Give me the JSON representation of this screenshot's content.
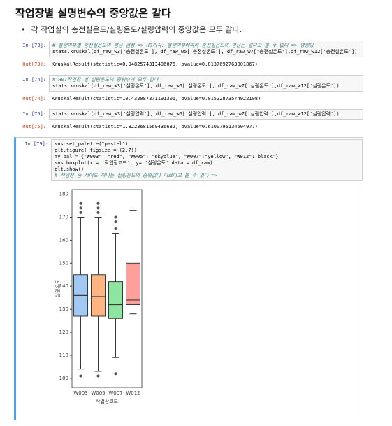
{
  "heading": "작업장별 설명변수의 중앙값은 같다",
  "bullet": "각 작업실의 충전실온도/실링온도/실링압력의 중앙값은 모두 같다.",
  "cells": [
    {
      "prompt": "In [73]:",
      "lines": [
        "# 불량여부별 충전실온도의 평균 검정 => H0기각: 불량여부에따라 충전실온도의 평균은 같다고 볼 수 없다 => 영향있",
        "stats.kruskal(df_raw_w3['충전실온도'], df_raw_w5['충전실온도'], df_raw_w7['충전실온도'],df_raw_w12['충전실온도'])"
      ],
      "out_prompt": "Out[73]:",
      "output": "KruskalResult(statistic=0.9482574313406076, pvalue=0.8137692763801867)"
    },
    {
      "prompt": "In [74]:",
      "lines": [
        "# H0:작업장 별 실링온도의 중위수가 모두 같다",
        "stats.kruskal(df_raw_w3['실링온도'], df_raw_w5['실링온도'], df_raw_w7['실링온도'],df_raw_w12['실링온도'])"
      ],
      "out_prompt": "Out[74]:",
      "output": "KruskalResult(statistic=10.432087371191301, pvalue=0.01522873574922198)"
    },
    {
      "prompt": "In [75]:",
      "lines": [
        "stats.kruskal(df_raw_w3['실링압력'], df_raw_w5['실링압력'], df_raw_w7['실링압력'],df_raw_w12['실링압력'])"
      ],
      "out_prompt": "Out[75]:",
      "output": "KruskalResult(statistic=1.8223681569436632, pvalue=0.6100795134504977)"
    },
    {
      "prompt": "In [79]:",
      "lines": [
        "sns.set_palette(\"pastel\")",
        "plt.figure( figsize = (2,7))",
        "my_pal = {\"W003\": \"red\", \"W005\": \"skyblue\", \"W007\":\"yellow\", \"W012\":'black'}",
        "sns.boxplot(x = '작업장코드', y= '실링온도',data = df_raw)",
        "plt.show()",
        "# 작업장 중 적어도 하나는 실링온도의 중위값이 다르다고 볼 수 있다 =>"
      ]
    }
  ],
  "chart_data": {
    "type": "box",
    "xlabel": "작업장코드",
    "ylabel": "실링온도",
    "categories": [
      "W003",
      "W005",
      "W007",
      "W012"
    ],
    "colors": [
      "#a1c9f4",
      "#ffb482",
      "#8de5a1",
      "#ff9f9b"
    ],
    "whislo": [
      104,
      103,
      109,
      128
    ],
    "q1": [
      127,
      127,
      126,
      132
    ],
    "median": [
      136,
      135.5,
      132,
      134
    ],
    "q3": [
      145,
      145,
      142,
      150
    ],
    "whishi": [
      170,
      170,
      163,
      173
    ],
    "outliers": [
      [
        101,
        172,
        174,
        176
      ],
      [
        101,
        172,
        174,
        176
      ],
      [
        102,
        165,
        168,
        170
      ],
      []
    ],
    "ylim": [
      96,
      182
    ],
    "yticks": [
      100,
      110,
      120,
      130,
      140,
      150,
      160,
      170,
      180
    ]
  }
}
